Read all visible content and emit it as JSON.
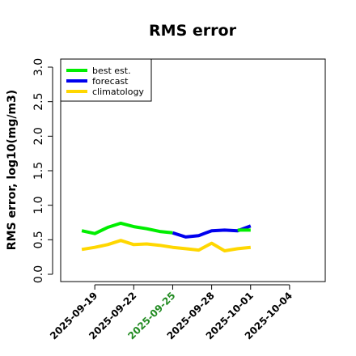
{
  "chart_data": {
    "type": "line",
    "title": "RMS error",
    "xlabel": "",
    "ylabel": "RMS error, log10(mg/m3)",
    "ylim": [
      0.0,
      3.0
    ],
    "yticks": [
      "0.0",
      "0.5",
      "1.0",
      "1.5",
      "2.0",
      "2.5",
      "3.0"
    ],
    "xlim": [
      "2025-09-16",
      "2025-10-06"
    ],
    "xticks": [
      {
        "label": "2025-09-19",
        "date": "2025-09-19",
        "color": "#000000"
      },
      {
        "label": "2025-09-22",
        "date": "2025-09-22",
        "color": "#000000"
      },
      {
        "label": "2025-09-25",
        "date": "2025-09-25",
        "color": "#228B22"
      },
      {
        "label": "2025-09-28",
        "date": "2025-09-28",
        "color": "#000000"
      },
      {
        "label": "2025-10-01",
        "date": "2025-10-01",
        "color": "#000000"
      },
      {
        "label": "2025-10-04",
        "date": "2025-10-04",
        "color": "#000000"
      }
    ],
    "legend_position": "top-left",
    "grid": false,
    "series": [
      {
        "name": "best est.",
        "color": "#00ee00",
        "points": [
          {
            "x": "2025-09-18",
            "y": 0.63
          },
          {
            "x": "2025-09-19",
            "y": 0.59
          },
          {
            "x": "2025-09-20",
            "y": 0.68
          },
          {
            "x": "2025-09-21",
            "y": 0.74
          },
          {
            "x": "2025-09-22",
            "y": 0.69
          },
          {
            "x": "2025-09-23",
            "y": 0.66
          },
          {
            "x": "2025-09-24",
            "y": 0.62
          },
          {
            "x": "2025-09-25",
            "y": 0.6
          }
        ]
      },
      {
        "name": "forecast",
        "color": "#0000ee",
        "points": [
          {
            "x": "2025-09-25",
            "y": 0.6
          },
          {
            "x": "2025-09-26",
            "y": 0.54
          },
          {
            "x": "2025-09-27",
            "y": 0.56
          },
          {
            "x": "2025-09-28",
            "y": 0.63
          },
          {
            "x": "2025-09-29",
            "y": 0.64
          },
          {
            "x": "2025-09-30",
            "y": 0.63
          },
          {
            "x": "2025-10-01",
            "y": 0.7
          }
        ]
      },
      {
        "name": "climatology",
        "color": "#ffd700",
        "points": [
          {
            "x": "2025-09-18",
            "y": 0.36
          },
          {
            "x": "2025-09-19",
            "y": 0.39
          },
          {
            "x": "2025-09-20",
            "y": 0.43
          },
          {
            "x": "2025-09-21",
            "y": 0.49
          },
          {
            "x": "2025-09-22",
            "y": 0.43
          },
          {
            "x": "2025-09-23",
            "y": 0.44
          },
          {
            "x": "2025-09-24",
            "y": 0.42
          },
          {
            "x": "2025-09-25",
            "y": 0.39
          },
          {
            "x": "2025-09-26",
            "y": 0.37
          },
          {
            "x": "2025-09-27",
            "y": 0.35
          },
          {
            "x": "2025-09-28",
            "y": 0.45
          },
          {
            "x": "2025-09-29",
            "y": 0.34
          },
          {
            "x": "2025-09-30",
            "y": 0.37
          },
          {
            "x": "2025-10-01",
            "y": 0.39
          }
        ]
      }
    ],
    "extra_segments": [
      {
        "series": "best est.",
        "color": "#00ee00",
        "points": [
          {
            "x": "2025-09-30",
            "y": 0.64
          },
          {
            "x": "2025-10-01",
            "y": 0.64
          }
        ]
      }
    ]
  }
}
